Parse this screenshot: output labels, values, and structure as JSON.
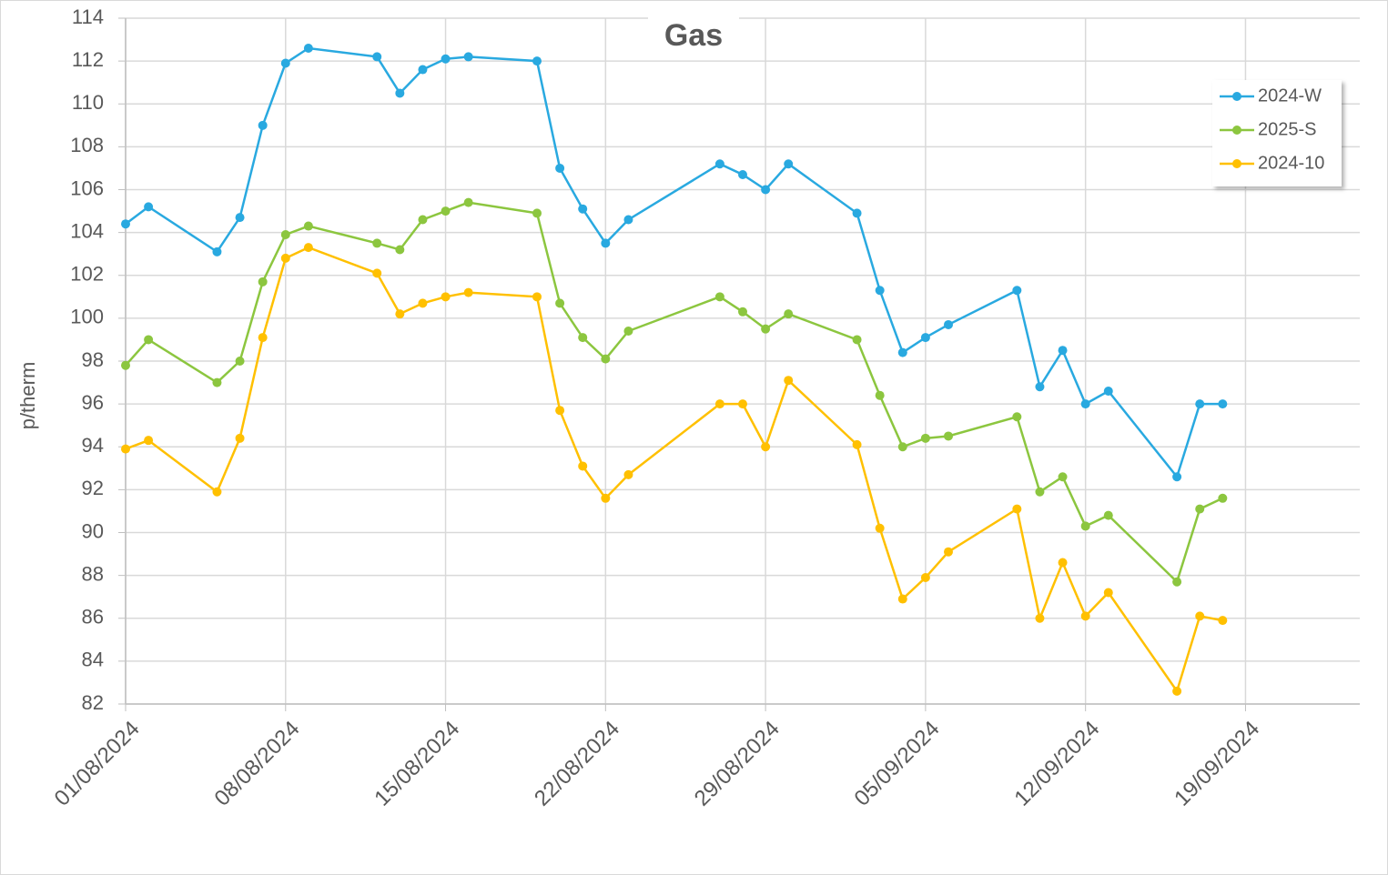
{
  "chart_data": {
    "type": "line",
    "title": "Gas",
    "y_label": "p/therm",
    "x": [
      "2024-08-01",
      "2024-08-02",
      "2024-08-05",
      "2024-08-06",
      "2024-08-07",
      "2024-08-08",
      "2024-08-09",
      "2024-08-12",
      "2024-08-13",
      "2024-08-14",
      "2024-08-15",
      "2024-08-16",
      "2024-08-19",
      "2024-08-20",
      "2024-08-21",
      "2024-08-22",
      "2024-08-23",
      "2024-08-27",
      "2024-08-28",
      "2024-08-29",
      "2024-08-30",
      "2024-09-02",
      "2024-09-03",
      "2024-09-04",
      "2024-09-05",
      "2024-09-06",
      "2024-09-09",
      "2024-09-10",
      "2024-09-11",
      "2024-09-12",
      "2024-09-13",
      "2024-09-16",
      "2024-09-17",
      "2024-09-18"
    ],
    "series": [
      {
        "name": "2024-W",
        "color": "#29a9e0",
        "values": [
          104.4,
          105.2,
          103.1,
          104.7,
          109.0,
          111.9,
          112.6,
          112.2,
          110.5,
          111.6,
          112.1,
          112.2,
          112.0,
          107.0,
          105.1,
          103.5,
          104.6,
          107.2,
          106.7,
          106.0,
          107.2,
          104.9,
          101.3,
          98.4,
          99.1,
          99.7,
          101.3,
          96.8,
          98.5,
          96.0,
          96.6,
          92.6,
          96.0,
          96.0
        ]
      },
      {
        "name": "2025-S",
        "color": "#8cc63f",
        "values": [
          97.8,
          99.0,
          97.0,
          98.0,
          101.7,
          103.9,
          104.3,
          103.5,
          103.2,
          104.6,
          105.0,
          105.4,
          104.9,
          100.7,
          99.1,
          98.1,
          99.4,
          101.0,
          100.3,
          99.5,
          100.2,
          99.0,
          96.4,
          94.0,
          94.4,
          94.5,
          95.4,
          91.9,
          92.6,
          90.3,
          90.8,
          87.7,
          91.1,
          91.6
        ]
      },
      {
        "name": "2024-10",
        "color": "#ffc000",
        "values": [
          93.9,
          94.3,
          91.9,
          94.4,
          99.1,
          102.8,
          103.3,
          102.1,
          100.2,
          100.7,
          101.0,
          101.2,
          101.0,
          95.7,
          93.1,
          91.6,
          92.7,
          96.0,
          96.0,
          94.0,
          97.1,
          94.1,
          90.2,
          86.9,
          87.9,
          89.1,
          91.1,
          86.0,
          88.6,
          86.1,
          87.2,
          82.6,
          86.1,
          85.9
        ]
      }
    ],
    "xlim": [
      "2024-08-01",
      "2024-09-24"
    ],
    "xticks": [
      {
        "value": "2024-08-01",
        "label": "01/08/2024"
      },
      {
        "value": "2024-08-08",
        "label": "08/08/2024"
      },
      {
        "value": "2024-08-15",
        "label": "15/08/2024"
      },
      {
        "value": "2024-08-22",
        "label": "22/08/2024"
      },
      {
        "value": "2024-08-29",
        "label": "29/08/2024"
      },
      {
        "value": "2024-09-05",
        "label": "05/09/2024"
      },
      {
        "value": "2024-09-12",
        "label": "12/09/2024"
      },
      {
        "value": "2024-09-19",
        "label": "19/09/2024"
      }
    ],
    "ylim": [
      82,
      114
    ],
    "yticks": [
      82,
      84,
      86,
      88,
      90,
      92,
      94,
      96,
      98,
      100,
      102,
      104,
      106,
      108,
      110,
      112,
      114
    ],
    "grid": true,
    "legend": "upper-right"
  }
}
